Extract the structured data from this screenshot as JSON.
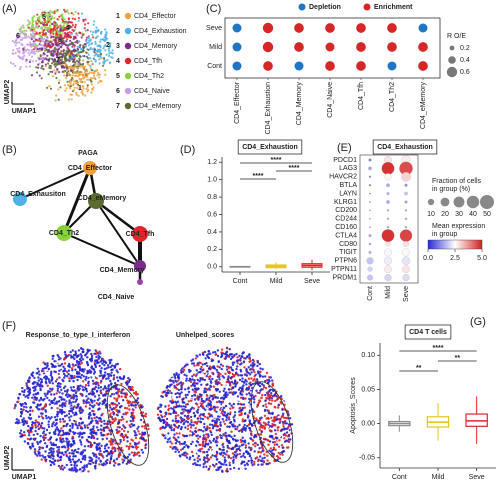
{
  "chart_data": [
    {
      "type": "embedding",
      "panel": "(A)",
      "xlabel": "UMAP1",
      "ylabel": "UMAP2",
      "clusters": [
        {
          "id": "1",
          "name": "CD4_Effector",
          "color": "#f5a23c"
        },
        {
          "id": "2",
          "name": "CD4_Exhaustion",
          "color": "#4db3e6"
        },
        {
          "id": "3",
          "name": "CD4_Memory",
          "color": "#7a2b8c"
        },
        {
          "id": "4",
          "name": "CD4_Tfh",
          "color": "#e3242b"
        },
        {
          "id": "5",
          "name": "CD4_Th2",
          "color": "#86d43c"
        },
        {
          "id": "6",
          "name": "CD4_Naive",
          "color": "#c99ae6"
        },
        {
          "id": "7",
          "name": "CD4_eMemory",
          "color": "#5b6b2e"
        }
      ]
    },
    {
      "type": "dotgrid",
      "panel": "(C)",
      "rows": [
        "Seve",
        "Mild",
        "Cont"
      ],
      "columns": [
        "CD4_Effector",
        "CD4_Exhaustion",
        "CD4_Memory",
        "CD4_Naive",
        "CD4_Tfh",
        "CD4_Th2",
        "CD4_eMemory"
      ],
      "series": [
        {
          "name": "Depletion",
          "color": "#1f77c4"
        },
        {
          "name": "Enrichment",
          "color": "#d62728"
        }
      ],
      "status": [
        [
          "Depletion",
          "Enrichment",
          "Enrichment",
          "Enrichment",
          "Enrichment",
          "Enrichment",
          "Depletion"
        ],
        [
          "Depletion",
          "Enrichment",
          "Enrichment",
          "Enrichment",
          "Enrichment",
          "Enrichment",
          "Enrichment"
        ],
        [
          "Depletion",
          "Enrichment",
          "Depletion",
          "Enrichment",
          "Enrichment",
          "Depletion",
          "Enrichment"
        ]
      ],
      "sizes": [
        [
          0.5,
          0.6,
          0.55,
          0.55,
          0.55,
          0.55,
          0.5
        ],
        [
          0.5,
          0.6,
          0.55,
          0.5,
          0.55,
          0.55,
          0.55
        ],
        [
          0.5,
          0.55,
          0.5,
          0.55,
          0.55,
          0.5,
          0.55
        ]
      ],
      "size_title": "R O/E",
      "size_ticks": [
        0.2,
        0.4,
        0.6
      ]
    },
    {
      "type": "network",
      "panel": "(B)",
      "title": "PAGA",
      "nodes": [
        {
          "label": "CD4_Effector",
          "color": "#f5a23c"
        },
        {
          "label": "CD4_Exhausiton",
          "color": "#4db3e6"
        },
        {
          "label": "CD4_eMemory",
          "color": "#5b6b2e"
        },
        {
          "label": "CD4_Th2",
          "color": "#86d43c"
        },
        {
          "label": "CD4_Tfh",
          "color": "#e3242b"
        },
        {
          "label": "CD4_Memory",
          "color": "#7a2b8c"
        },
        {
          "label": "CD4_Naive",
          "color": "#9b3fb0"
        }
      ],
      "edges": [
        [
          0,
          1
        ],
        [
          0,
          2
        ],
        [
          0,
          3
        ],
        [
          2,
          3
        ],
        [
          2,
          4
        ],
        [
          2,
          5
        ],
        [
          4,
          5
        ],
        [
          3,
          5
        ],
        [
          5,
          6
        ]
      ]
    },
    {
      "type": "box",
      "panel": "(D)",
      "title": "CD4_Exhaustion",
      "categories": [
        "Cont",
        "Mild",
        "Seve"
      ],
      "colors": [
        "#8c8c8c",
        "#e6c619",
        "#e3242b"
      ],
      "boxes": [
        {
          "whislo": -0.01,
          "q1": -0.003,
          "med": 0,
          "q3": 0.003,
          "whishi": 0.01
        },
        {
          "whislo": -0.03,
          "q1": -0.01,
          "med": 0.005,
          "q3": 0.02,
          "whishi": 0.05
        },
        {
          "whislo": -0.04,
          "q1": -0.005,
          "med": 0.015,
          "q3": 0.035,
          "whishi": 0.08
        }
      ],
      "ylim": [
        -0.06,
        1.26
      ],
      "yticks": [
        {
          "value": 0,
          "label": "0.0"
        },
        0.2,
        0.4,
        0.6,
        0.8,
        {
          "value": 1,
          "label": "1.0"
        },
        1.2
      ],
      "annotations": [
        {
          "label": "****",
          "groups": [
            "Cont",
            "Seve"
          ]
        },
        {
          "label": "****",
          "groups": [
            "Mild",
            "Seve"
          ]
        },
        {
          "label": "****",
          "groups": [
            "Cont",
            "Mild"
          ]
        }
      ]
    },
    {
      "type": "heatdot",
      "panel": "(E)",
      "title": "CD4_Exhaustion",
      "columns": [
        "Cont",
        "Mild",
        "Seve"
      ],
      "genes": [
        "PDCD1",
        "LAG3",
        "HAVCR2",
        "BTLA",
        "LAYN",
        "KLRG1",
        "CD200",
        "CD244",
        "CD160",
        "CTLA4",
        "CD80",
        "TIGIT",
        "PTPN6",
        "PTPN11",
        "PRDM1"
      ],
      "fraction": [
        [
          2,
          15,
          20
        ],
        [
          3,
          40,
          45
        ],
        [
          1,
          12,
          22
        ],
        [
          1,
          3,
          2
        ],
        [
          0.5,
          2,
          3
        ],
        [
          0.5,
          3,
          2
        ],
        [
          0.5,
          1,
          1
        ],
        [
          0.5,
          1,
          1
        ],
        [
          0.5,
          1,
          1
        ],
        [
          2,
          40,
          38
        ],
        [
          1,
          5,
          8
        ],
        [
          2,
          14,
          15
        ],
        [
          12,
          16,
          17
        ],
        [
          6,
          14,
          14
        ],
        [
          8,
          12,
          12
        ]
      ],
      "mean": [
        [
          1.0,
          2.8,
          2.7
        ],
        [
          1.5,
          4.8,
          4.5
        ],
        [
          1.0,
          2.6,
          3.0
        ],
        [
          1.0,
          1.5,
          1.2
        ],
        [
          1.0,
          1.6,
          1.8
        ],
        [
          1.0,
          1.5,
          1.4
        ],
        [
          1.2,
          1.5,
          1.4
        ],
        [
          1.2,
          1.4,
          1.3
        ],
        [
          1.2,
          1.3,
          1.3
        ],
        [
          1.5,
          4.8,
          4.6
        ],
        [
          1.2,
          2.8,
          2.8
        ],
        [
          1.6,
          2.4,
          2.6
        ],
        [
          1.8,
          2.3,
          2.2
        ],
        [
          2.0,
          2.7,
          2.8
        ],
        [
          1.8,
          2.0,
          2.1
        ]
      ],
      "size_title": [
        "Fraction of cells",
        "in group (%)"
      ],
      "size_ticks": [
        10,
        20,
        30,
        40,
        50
      ],
      "color_title": [
        "Mean expression",
        "in group"
      ],
      "color_lim": [
        0,
        5
      ],
      "color_ticks": [
        {
          "value": 0,
          "label": "0.0"
        },
        2.5,
        {
          "value": 5,
          "label": "5.0"
        }
      ],
      "colors": [
        "#2a2ad6",
        "#ffffff",
        "#d42020"
      ]
    },
    {
      "type": "feature-embedding",
      "panel": "(F)",
      "titles": [
        "Response_to_type_I_interferon",
        "Unhelped_scores"
      ],
      "xlabel": "UMAP1",
      "ylabel": "UMAP2",
      "colors": [
        "#2424d0",
        "#ffffff",
        "#e02424"
      ]
    },
    {
      "type": "box",
      "panel": "(G)",
      "title": "CD4 T cells",
      "ylabel": "Apoptosis_Scores",
      "categories": [
        "Cont",
        "Mild",
        "Seve"
      ],
      "colors": [
        "#8c8c8c",
        "#e6c619",
        "#e3242b"
      ],
      "boxes": [
        {
          "whislo": -0.012,
          "q1": -0.003,
          "med": 0,
          "q3": 0.003,
          "whishi": 0.012
        },
        {
          "whislo": -0.025,
          "q1": -0.005,
          "med": 0.002,
          "q3": 0.01,
          "whishi": 0.03
        },
        {
          "whislo": -0.03,
          "q1": -0.004,
          "med": 0.004,
          "q3": 0.014,
          "whishi": 0.04
        }
      ],
      "ylim": [
        -0.065,
        0.118
      ],
      "yticks": [
        -0.05,
        {
          "value": 0,
          "label": "0.00"
        },
        0.05,
        {
          "value": 0.1,
          "label": "0.10"
        }
      ],
      "annotations": [
        {
          "label": "****",
          "groups": [
            "Cont",
            "Seve"
          ]
        },
        {
          "label": "**",
          "groups": [
            "Mild",
            "Seve"
          ]
        },
        {
          "label": "**",
          "groups": [
            "Cont",
            "Mild"
          ]
        }
      ]
    }
  ]
}
